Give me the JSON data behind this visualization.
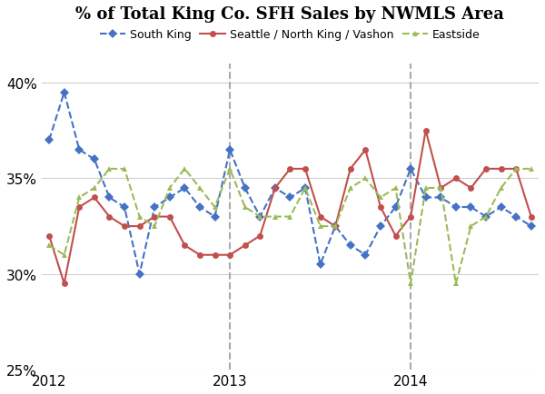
{
  "title": "% of Total King Co. SFH Sales by NWMLS Area",
  "series": [
    {
      "name": "South King",
      "color": "#4472C4",
      "marker": "D",
      "linestyle": "--",
      "values": [
        37.0,
        39.5,
        36.5,
        36.0,
        34.0,
        33.5,
        30.0,
        33.5,
        34.0,
        34.5,
        33.5,
        33.0,
        36.5,
        34.5,
        33.0,
        34.5,
        34.0,
        34.5,
        30.5,
        32.5,
        31.5,
        31.0,
        32.5,
        33.5,
        35.5,
        34.0,
        34.0,
        33.5,
        33.5,
        33.0,
        33.5,
        33.0,
        32.5
      ]
    },
    {
      "name": "Seattle / North King / Vashon",
      "color": "#C0504D",
      "marker": "o",
      "linestyle": "-",
      "values": [
        32.0,
        29.5,
        33.5,
        34.0,
        33.0,
        32.5,
        32.5,
        33.0,
        33.0,
        31.5,
        31.0,
        31.0,
        31.0,
        31.5,
        32.0,
        34.5,
        35.5,
        35.5,
        33.0,
        32.5,
        35.5,
        36.5,
        33.5,
        32.0,
        33.0,
        37.5,
        34.5,
        35.0,
        34.5,
        35.5,
        35.5,
        35.5,
        33.0
      ]
    },
    {
      "name": "Eastside",
      "color": "#9BBB59",
      "marker": "^",
      "linestyle": "--",
      "values": [
        31.5,
        31.0,
        34.0,
        34.5,
        35.5,
        35.5,
        33.0,
        32.5,
        34.5,
        35.5,
        34.5,
        33.5,
        35.5,
        33.5,
        33.0,
        33.0,
        33.0,
        34.5,
        32.5,
        32.5,
        34.5,
        35.0,
        34.0,
        34.5,
        29.5,
        34.5,
        34.5,
        29.5,
        32.5,
        33.0,
        34.5,
        35.5,
        35.5
      ]
    }
  ],
  "x_ticks": [
    0,
    12,
    24
  ],
  "x_tick_labels": [
    "2012",
    "2013",
    "2014"
  ],
  "vlines": [
    12,
    24
  ],
  "ylim": [
    25,
    41
  ],
  "yticks": [
    25,
    30,
    35,
    40
  ],
  "background_color": "#FFFFFF",
  "grid_color": "#D0D0D0"
}
